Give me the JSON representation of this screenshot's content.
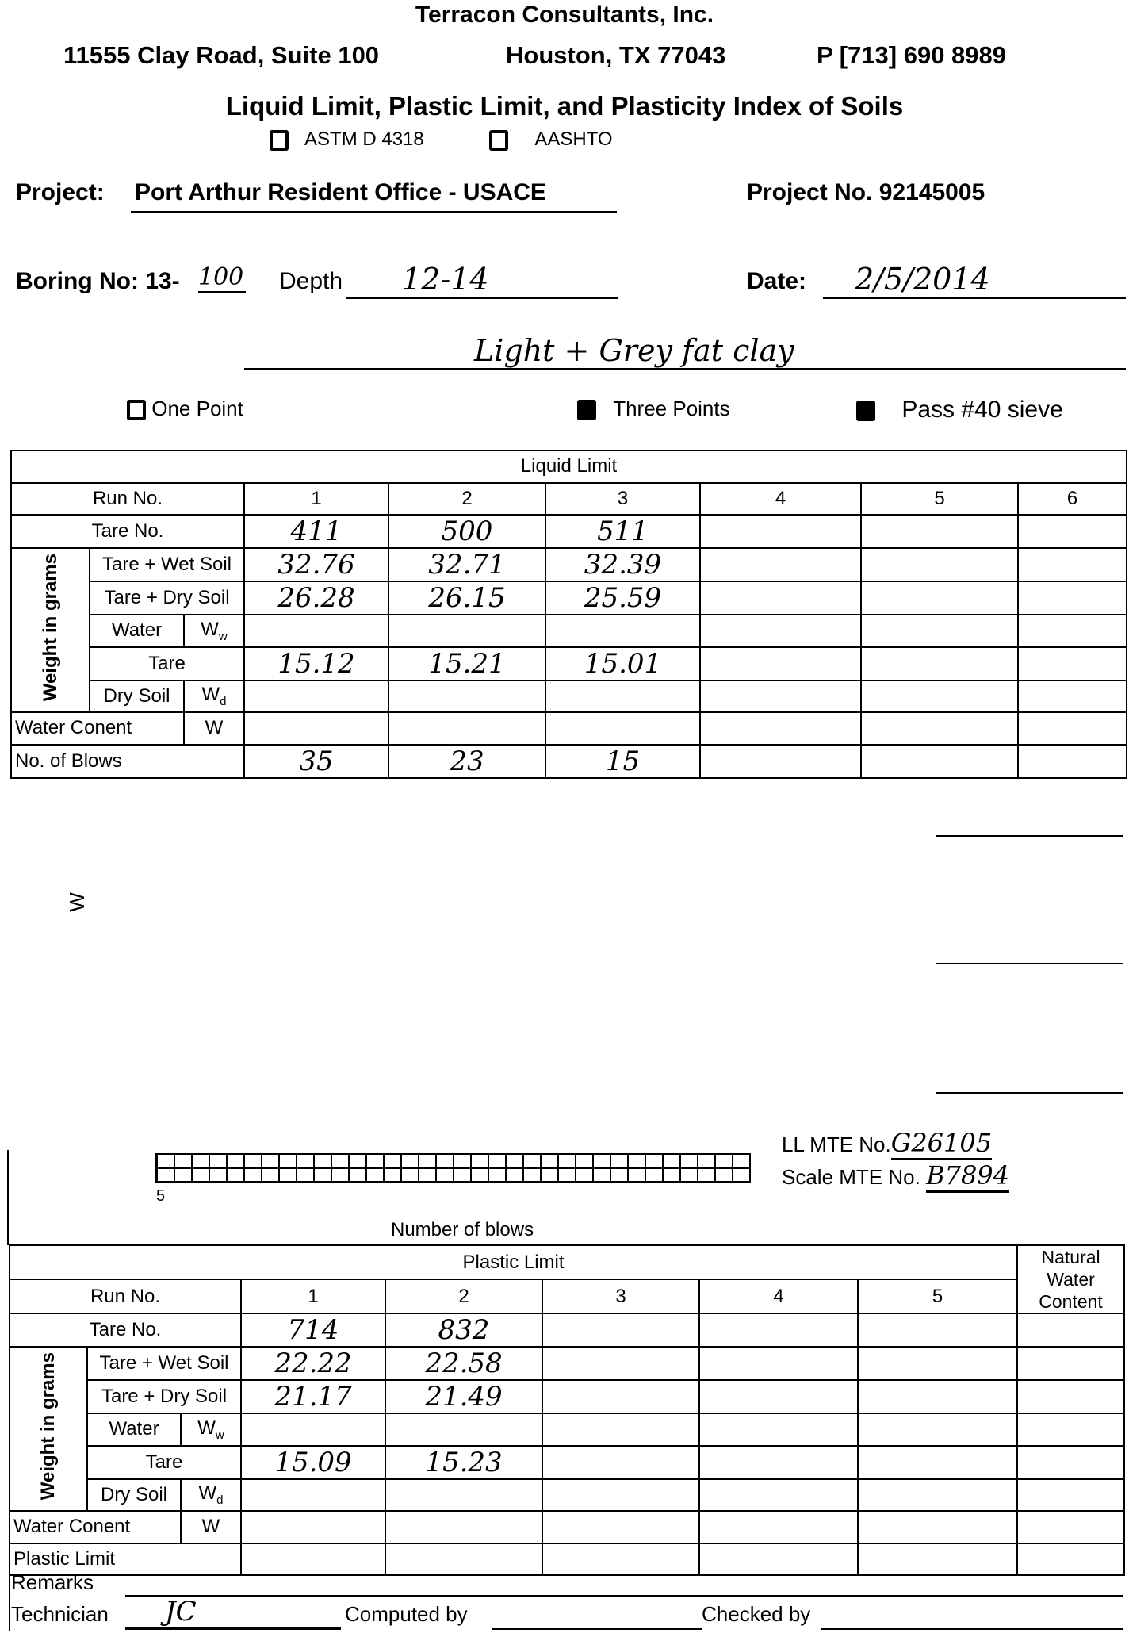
{
  "header": {
    "company": "Terracon Consultants, Inc.",
    "address": "11555 Clay Road, Suite 100",
    "city": "Houston, TX 77043",
    "phone": "P  [713] 690 8989",
    "title": "Liquid Limit, Plastic Limit, and Plasticity Index of Soils",
    "standards": [
      "ASTM D 4318",
      "AASHTO"
    ]
  },
  "project": {
    "label": "Project:",
    "value": "Port Arthur Resident Office  -  USACE",
    "no_label": "Project  No.",
    "no_value": "92145005"
  },
  "boring": {
    "label": "Boring No: 13-",
    "value": "100",
    "depth_label": "Depth",
    "depth_value": "12-14",
    "date_label": "Date:",
    "date_value": "2/5/2014",
    "description": "Light + Grey fat clay"
  },
  "options": [
    {
      "label": "One Point",
      "checked": false
    },
    {
      "label": "Three Points",
      "checked": true
    },
    {
      "label": "Pass #40 sieve",
      "checked": true
    }
  ],
  "liquid_limit": {
    "title": "Liquid Limit",
    "run_label": "Run No.",
    "runs": [
      "1",
      "2",
      "3",
      "4",
      "5",
      "6"
    ],
    "group_label": "Weight in grams",
    "rows": {
      "tare_no": {
        "label": "Tare No.",
        "values": [
          "411",
          "500",
          "511",
          "",
          "",
          ""
        ]
      },
      "wet": {
        "label": "Tare + Wet Soil",
        "values": [
          "32.76",
          "32.71",
          "32.39",
          "",
          "",
          ""
        ]
      },
      "dry": {
        "label": "Tare + Dry Soil",
        "values": [
          "26.28",
          "26.15",
          "25.59",
          "",
          "",
          ""
        ]
      },
      "water": {
        "label": "Water",
        "sym": "W",
        "sub": "w",
        "values": [
          "",
          "",
          "",
          "",
          "",
          ""
        ]
      },
      "tare": {
        "label": "Tare",
        "values": [
          "15.12",
          "15.21",
          "15.01",
          "",
          "",
          ""
        ]
      },
      "dry_soil": {
        "label": "Dry Soil",
        "sym": "W",
        "sub": "d",
        "values": [
          "",
          "",
          "",
          "",
          "",
          ""
        ]
      },
      "wc": {
        "label": "Water Conent",
        "sym": "W",
        "values": [
          "",
          "",
          "",
          "",
          "",
          ""
        ]
      },
      "blows": {
        "label": "No. of Blows",
        "values": [
          "35",
          "23",
          "15",
          "",
          "",
          ""
        ]
      }
    }
  },
  "chart": {
    "y_label": "W",
    "x_tick": "5",
    "x_label": "Number of blows"
  },
  "mte": {
    "ll_label": "LL MTE No.",
    "ll_value": "G26105",
    "scale_label": "Scale MTE No.",
    "scale_value": "B7894"
  },
  "plastic_limit": {
    "title": "Plastic Limit",
    "nwc_label": "Natural Water Content",
    "run_label": "Run No.",
    "runs": [
      "1",
      "2",
      "3",
      "4",
      "5"
    ],
    "group_label": "Weight in grams",
    "rows": {
      "tare_no": {
        "label": "Tare No.",
        "values": [
          "714",
          "832",
          "",
          "",
          ""
        ]
      },
      "wet": {
        "label": "Tare + Wet Soil",
        "values": [
          "22.22",
          "22.58",
          "",
          "",
          ""
        ]
      },
      "dry": {
        "label": "Tare + Dry Soil",
        "values": [
          "21.17",
          "21.49",
          "",
          "",
          ""
        ]
      },
      "water": {
        "label": "Water",
        "sym": "W",
        "sub": "w",
        "values": [
          "",
          "",
          "",
          "",
          ""
        ]
      },
      "tare": {
        "label": "Tare",
        "values": [
          "15.09",
          "15.23",
          "",
          "",
          ""
        ]
      },
      "dry_soil": {
        "label": "Dry Soil",
        "sym": "W",
        "sub": "d",
        "values": [
          "",
          "",
          "",
          "",
          ""
        ]
      },
      "wc": {
        "label": "Water Conent",
        "sym": "W",
        "values": [
          "",
          "",
          "",
          "",
          ""
        ]
      },
      "pl": {
        "label": "Plastic Limit",
        "values": [
          "",
          "",
          "",
          "",
          ""
        ]
      }
    }
  },
  "footer": {
    "remarks_label": "Remarks",
    "technician_label": "Technician",
    "technician_value": "JC",
    "computed_label": "Computed by",
    "checked_label": "Checked by"
  }
}
